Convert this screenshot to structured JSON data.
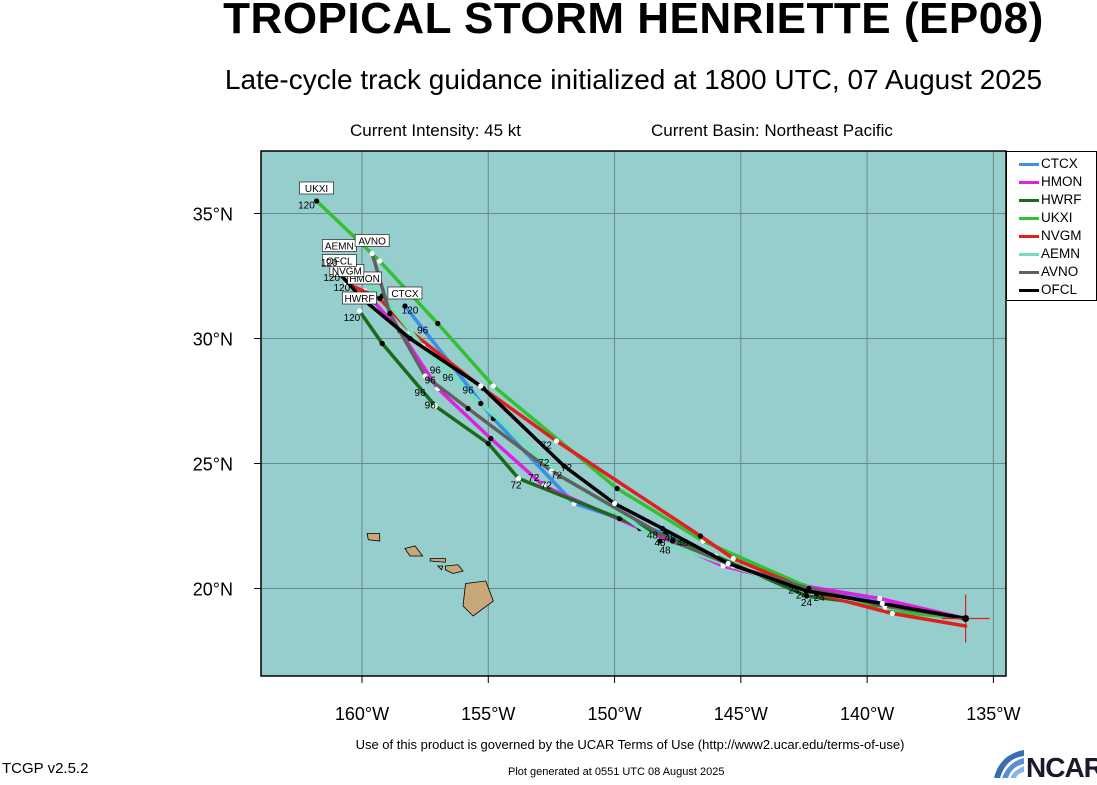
{
  "header": {
    "title": "TROPICAL STORM HENRIETTE (EP08)",
    "subtitle": "Late-cycle track guidance initialized at 1800 UTC, 07 August 2025",
    "intensity": "Current Intensity: 45 kt",
    "basin": "Current Basin: Northeast Pacific"
  },
  "footer": {
    "terms": "Use of this product is governed by the UCAR Terms of Use (http://www2.ucar.edu/terms-of-use)",
    "version": "TCGP v2.5.2",
    "generated": "Plot generated at 0551 UTC   08 August 2025",
    "logo_text": "NCAR"
  },
  "map": {
    "ocean_color": "#96cdcd",
    "land_color": "#c8a878",
    "lon_range": [
      -164,
      -134.5
    ],
    "lat_range": [
      16.5,
      37.5
    ],
    "lon_ticks": [
      -160,
      -155,
      -150,
      -145,
      -140,
      -135
    ],
    "lon_tick_labels": [
      "160°W",
      "155°W",
      "150°W",
      "145°W",
      "140°W",
      "135°W"
    ],
    "lat_ticks": [
      20,
      25,
      30,
      35
    ],
    "lat_tick_labels": [
      "20°N",
      "25°N",
      "30°N",
      "35°N"
    ],
    "grid": true,
    "current_position": [
      -136.1,
      18.8
    ]
  },
  "legend": [
    {
      "name": "CTCX",
      "color": "#3a8fe8"
    },
    {
      "name": "HMON",
      "color": "#e020e0"
    },
    {
      "name": "HWRF",
      "color": "#1a6a1a"
    },
    {
      "name": "UKXI",
      "color": "#33c033"
    },
    {
      "name": "NVGM",
      "color": "#e02020"
    },
    {
      "name": "AEMN",
      "color": "#70e0b8"
    },
    {
      "name": "AVNO",
      "color": "#606060"
    },
    {
      "name": "OFCL",
      "color": "#000000"
    }
  ],
  "tracks": [
    {
      "name": "CTCX",
      "color": "#3a8fe8",
      "endlabel": "CTCX",
      "points": [
        [
          -136.1,
          18.8
        ],
        [
          -139.3,
          19.4
        ],
        [
          -142.3,
          20.0
        ],
        [
          -145.2,
          20.8
        ],
        [
          -148.0,
          22.2
        ],
        [
          -151.6,
          23.4
        ],
        [
          -154.8,
          26.8
        ],
        [
          -156.5,
          29.0
        ],
        [
          -158.3,
          31.3
        ]
      ]
    },
    {
      "name": "HMON",
      "color": "#e020e0",
      "endlabel": "HMON",
      "points": [
        [
          -136.1,
          18.8
        ],
        [
          -139.5,
          19.6
        ],
        [
          -142.5,
          20.1
        ],
        [
          -145.7,
          20.9
        ],
        [
          -149.0,
          22.4
        ],
        [
          -152.8,
          24.1
        ],
        [
          -154.9,
          26.0
        ],
        [
          -157.0,
          28.0
        ],
        [
          -158.5,
          30.3
        ],
        [
          -159.9,
          31.9
        ]
      ]
    },
    {
      "name": "HWRF",
      "color": "#1a6a1a",
      "endlabel": "HWRF",
      "points": [
        [
          -136.1,
          18.8
        ],
        [
          -139.3,
          19.3
        ],
        [
          -142.4,
          19.7
        ],
        [
          -146.0,
          21.3
        ],
        [
          -149.8,
          22.8
        ],
        [
          -153.8,
          24.4
        ],
        [
          -155.0,
          25.8
        ],
        [
          -157.1,
          27.3
        ],
        [
          -159.2,
          29.8
        ],
        [
          -160.1,
          31.1
        ]
      ]
    },
    {
      "name": "UKXI",
      "color": "#33c033",
      "endlabel": "UKXI",
      "points": [
        [
          -136.1,
          18.8
        ],
        [
          -139.3,
          19.1
        ],
        [
          -142.0,
          19.9
        ],
        [
          -146.5,
          21.9
        ],
        [
          -149.9,
          24.0
        ],
        [
          -154.8,
          28.1
        ],
        [
          -157.0,
          30.6
        ],
        [
          -159.3,
          33.1
        ],
        [
          -161.8,
          35.5
        ]
      ]
    },
    {
      "name": "NVGM",
      "color": "#e02020",
      "endlabel": "NVGM",
      "points": [
        [
          -136.1,
          18.5
        ],
        [
          -139.0,
          19.0
        ],
        [
          -142.0,
          19.8
        ],
        [
          -145.3,
          21.2
        ],
        [
          -146.6,
          22.1
        ],
        [
          -152.3,
          25.9
        ],
        [
          -155.2,
          28.0
        ],
        [
          -158.1,
          30.3
        ],
        [
          -159.3,
          31.6
        ],
        [
          -160.6,
          32.2
        ]
      ]
    },
    {
      "name": "AEMN",
      "color": "#70e0b8",
      "endlabel": "AEMN",
      "points": [
        [
          -136.1,
          18.8
        ],
        [
          -139.2,
          19.3
        ],
        [
          -142.3,
          19.9
        ],
        [
          -145.7,
          21.0
        ],
        [
          -148.2,
          21.9
        ],
        [
          -152.2,
          24.6
        ],
        [
          -155.3,
          27.4
        ],
        [
          -157.6,
          29.7
        ],
        [
          -159.2,
          31.7
        ],
        [
          -160.9,
          33.2
        ]
      ]
    },
    {
      "name": "AVNO",
      "color": "#606060",
      "endlabel": "AVNO",
      "points": [
        [
          -136.1,
          18.8
        ],
        [
          -139.3,
          19.3
        ],
        [
          -142.3,
          20.0
        ],
        [
          -145.3,
          20.9
        ],
        [
          -147.7,
          21.9
        ],
        [
          -152.5,
          24.7
        ],
        [
          -155.8,
          27.2
        ],
        [
          -157.5,
          28.5
        ],
        [
          -158.9,
          31.0
        ],
        [
          -159.6,
          33.4
        ]
      ]
    },
    {
      "name": "OFCL",
      "color": "#000000",
      "endlabel": "OFCL",
      "points": [
        [
          -136.1,
          18.8
        ],
        [
          -139.4,
          19.4
        ],
        [
          -142.4,
          19.9
        ],
        [
          -145.5,
          21.0
        ],
        [
          -148.1,
          22.4
        ],
        [
          -150.0,
          23.4
        ],
        [
          -152.0,
          24.9
        ],
        [
          -155.3,
          28.1
        ],
        [
          -158.1,
          30.0
        ],
        [
          -160.0,
          31.6
        ],
        [
          -160.9,
          32.6
        ]
      ]
    }
  ],
  "hour_labels": [
    {
      "text": "120",
      "lon": -162.2,
      "lat": 35.2
    },
    {
      "text": "120",
      "lon": -161.3,
      "lat": 32.9
    },
    {
      "text": "120",
      "lon": -161.2,
      "lat": 32.3
    },
    {
      "text": "120",
      "lon": -160.8,
      "lat": 31.9
    },
    {
      "text": "120",
      "lon": -160.4,
      "lat": 30.7
    },
    {
      "text": "120",
      "lon": -158.1,
      "lat": 31.0
    },
    {
      "text": "96",
      "lon": -157.6,
      "lat": 30.2
    },
    {
      "text": "96",
      "lon": -157.1,
      "lat": 28.6
    },
    {
      "text": "96",
      "lon": -157.3,
      "lat": 28.2
    },
    {
      "text": "96",
      "lon": -156.6,
      "lat": 28.3
    },
    {
      "text": "96",
      "lon": -157.7,
      "lat": 27.7
    },
    {
      "text": "96",
      "lon": -157.3,
      "lat": 27.2
    },
    {
      "text": "96",
      "lon": -155.8,
      "lat": 27.8
    },
    {
      "text": "72",
      "lon": -152.7,
      "lat": 25.6
    },
    {
      "text": "72",
      "lon": -152.8,
      "lat": 24.9
    },
    {
      "text": "72",
      "lon": -151.9,
      "lat": 24.7
    },
    {
      "text": "72",
      "lon": -153.2,
      "lat": 24.3
    },
    {
      "text": "72",
      "lon": -152.3,
      "lat": 24.4
    },
    {
      "text": "72",
      "lon": -153.9,
      "lat": 24.0
    },
    {
      "text": "72",
      "lon": -152.7,
      "lat": 24.0
    },
    {
      "text": "48",
      "lon": -148.5,
      "lat": 22.0
    },
    {
      "text": "48",
      "lon": -148.2,
      "lat": 21.7
    },
    {
      "text": "48",
      "lon": -147.8,
      "lat": 21.9
    },
    {
      "text": "48",
      "lon": -147.3,
      "lat": 21.7
    },
    {
      "text": "48",
      "lon": -148.0,
      "lat": 21.4
    },
    {
      "text": "24",
      "lon": -142.9,
      "lat": 19.8
    },
    {
      "text": "24",
      "lon": -142.6,
      "lat": 19.6
    },
    {
      "text": "24",
      "lon": -142.4,
      "lat": 19.3
    },
    {
      "text": "24",
      "lon": -141.9,
      "lat": 19.5
    }
  ]
}
